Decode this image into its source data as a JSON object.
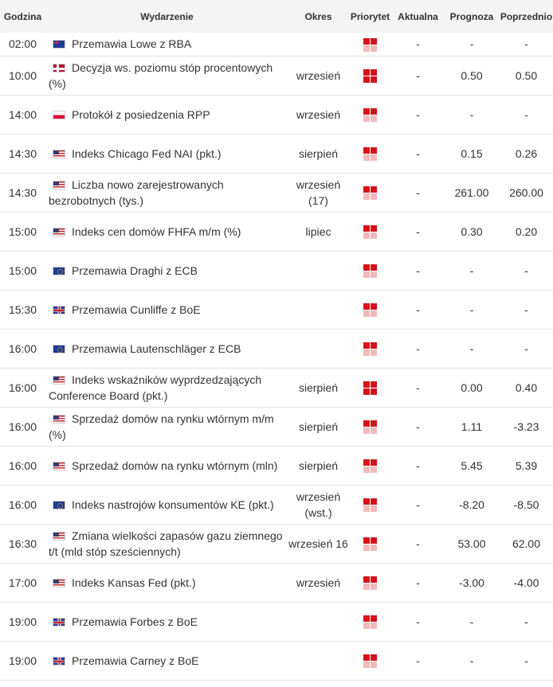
{
  "header": {
    "time": "Godzina",
    "event": "Wydarzenie",
    "period": "Okres",
    "priority": "Priorytet",
    "actual": "Aktualna",
    "forecast": "Prognoza",
    "previous": "Poprzednio"
  },
  "colors": {
    "priority_on": "#d4131a",
    "priority_off": "#f2b9bb",
    "header_bg": "#f4f4f4"
  },
  "rows": [
    {
      "time": "02:00",
      "flag": "au-flag-icon",
      "event": "Przemawia Lowe z RBA",
      "period": "",
      "priority": 2,
      "actual": "-",
      "forecast": "-",
      "previous": "-"
    },
    {
      "time": "10:00",
      "flag": "no-flag-icon",
      "event": "Decyzja ws. poziomu stóp procentowych (%)",
      "period": "wrzesień",
      "priority": 3,
      "actual": "-",
      "forecast": "0.50",
      "previous": "0.50"
    },
    {
      "time": "14:00",
      "flag": "pl-flag-icon",
      "event": "Protokół z posiedzenia RPP",
      "period": "wrzesień",
      "priority": 2,
      "actual": "-",
      "forecast": "-",
      "previous": "-"
    },
    {
      "time": "14:30",
      "flag": "us-flag-icon",
      "event": "Indeks Chicago Fed NAI (pkt.)",
      "period": "sierpień",
      "priority": 2,
      "actual": "-",
      "forecast": "0.15",
      "previous": "0.26"
    },
    {
      "time": "14:30",
      "flag": "us-flag-icon",
      "event": "Liczba nowo zarejestrowanych bezrobotnych (tys.)",
      "period": "wrzesień (17)",
      "priority": 2,
      "actual": "-",
      "forecast": "261.00",
      "previous": "260.00"
    },
    {
      "time": "15:00",
      "flag": "us-flag-icon",
      "event": "Indeks cen domów FHFA m/m (%)",
      "period": "lipiec",
      "priority": 2,
      "actual": "-",
      "forecast": "0.30",
      "previous": "0.20"
    },
    {
      "time": "15:00",
      "flag": "eu-flag-icon",
      "event": "Przemawia Draghi z ECB",
      "period": "",
      "priority": 2,
      "actual": "-",
      "forecast": "-",
      "previous": "-"
    },
    {
      "time": "15:30",
      "flag": "gb-flag-icon",
      "event": "Przemawia Cunliffe z BoE",
      "period": "",
      "priority": 2,
      "actual": "-",
      "forecast": "-",
      "previous": "-"
    },
    {
      "time": "16:00",
      "flag": "eu-flag-icon",
      "event": "Przemawia Lautenschläger z ECB",
      "period": "",
      "priority": 2,
      "actual": "-",
      "forecast": "-",
      "previous": "-"
    },
    {
      "time": "16:00",
      "flag": "us-flag-icon",
      "event": "Indeks wskaźników wyprdzedzających Conference Board (pkt.)",
      "period": "sierpień",
      "priority": 3,
      "actual": "-",
      "forecast": "0.00",
      "previous": "0.40"
    },
    {
      "time": "16:00",
      "flag": "us-flag-icon",
      "event": "Sprzedaż domów na rynku wtórnym m/m (%)",
      "period": "sierpień",
      "priority": 2,
      "actual": "-",
      "forecast": "1.11",
      "previous": "-3.23"
    },
    {
      "time": "16:00",
      "flag": "us-flag-icon",
      "event": "Sprzedaż domów na rynku wtórnym (mln)",
      "period": "sierpień",
      "priority": 2,
      "actual": "-",
      "forecast": "5.45",
      "previous": "5.39"
    },
    {
      "time": "16:00",
      "flag": "eu-flag-icon",
      "event": "Indeks nastrojów konsumentów KE (pkt.)",
      "period": "wrzesień (wst.)",
      "priority": 2,
      "actual": "-",
      "forecast": "-8.20",
      "previous": "-8.50"
    },
    {
      "time": "16:30",
      "flag": "us-flag-icon",
      "event": "Zmiana wielkości zapasów gazu ziemnego t/t (mld stóp sześciennych)",
      "period": "wrzesień 16",
      "priority": 2,
      "actual": "-",
      "forecast": "53.00",
      "previous": "62.00"
    },
    {
      "time": "17:00",
      "flag": "us-flag-icon",
      "event": "Indeks Kansas Fed (pkt.)",
      "period": "wrzesień",
      "priority": 2,
      "actual": "-",
      "forecast": "-3.00",
      "previous": "-4.00"
    },
    {
      "time": "19:00",
      "flag": "gb-flag-icon",
      "event": "Przemawia Forbes z BoE",
      "period": "",
      "priority": 2,
      "actual": "-",
      "forecast": "-",
      "previous": "-"
    },
    {
      "time": "19:00",
      "flag": "gb-flag-icon",
      "event": "Przemawia Carney z BoE",
      "period": "",
      "priority": 2,
      "actual": "-",
      "forecast": "-",
      "previous": "-"
    }
  ]
}
